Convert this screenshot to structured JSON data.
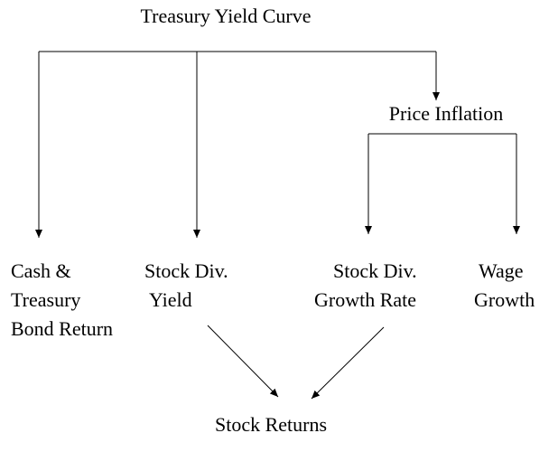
{
  "title": "Treasury Yield Curve",
  "nodes": [
    {
      "lines": [
        "Price Inflation"
      ]
    },
    {
      "lines": [
        "Cash &",
        "Treasury",
        "Bond Return"
      ]
    },
    {
      "lines": [
        "Stock Div.",
        "Yield"
      ]
    },
    {
      "lines": [
        "Stock Div.",
        "Growth Rate"
      ]
    },
    {
      "lines": [
        "Wage",
        "Growth"
      ]
    },
    {
      "lines": [
        "Stock Returns"
      ]
    }
  ]
}
